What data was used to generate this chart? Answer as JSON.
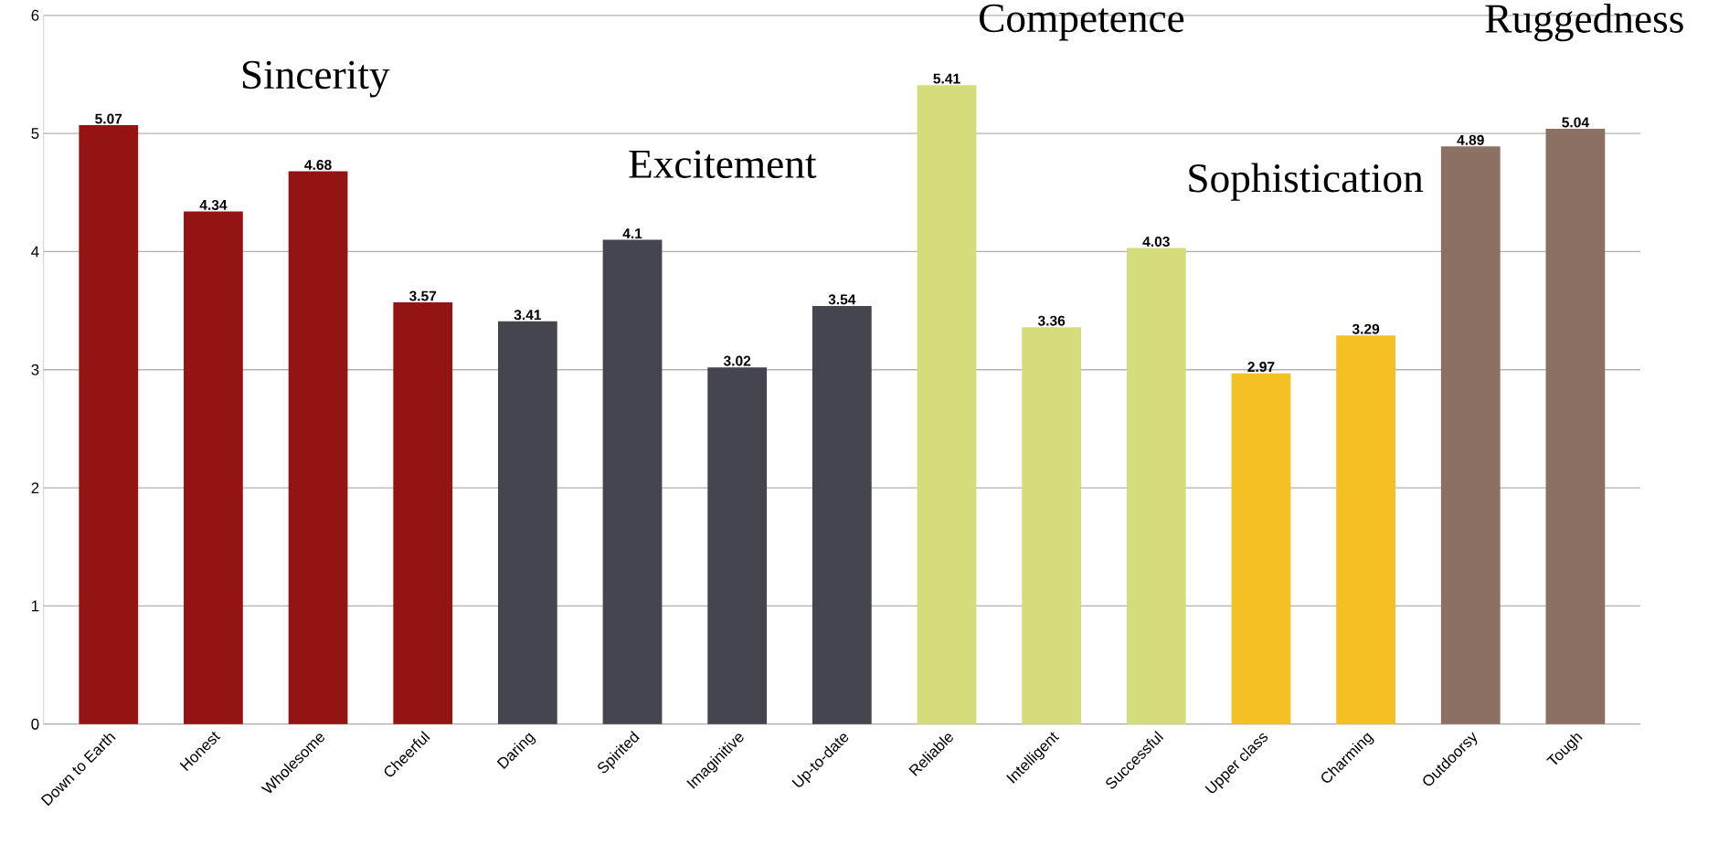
{
  "chart_data": {
    "type": "bar",
    "categories": [
      "Down to Earth",
      "Honest",
      "Wholesome",
      "Cheerful",
      "Daring",
      "Spirited",
      "Imaginitive",
      "Up-to-date",
      "Reliable",
      "Intelligent",
      "Successful",
      "Upper class",
      "Charming",
      "Outdoorsy",
      "Tough"
    ],
    "values": [
      5.07,
      4.34,
      4.68,
      3.57,
      3.41,
      4.1,
      3.02,
      3.54,
      5.41,
      3.36,
      4.03,
      2.97,
      3.29,
      4.89,
      5.04
    ],
    "colors": [
      "#941414",
      "#941414",
      "#941414",
      "#941414",
      "#454550",
      "#454550",
      "#454550",
      "#454550",
      "#d4dc7c",
      "#d4dc7c",
      "#d4dc7c",
      "#f4c024",
      "#f4c024",
      "#8c7064",
      "#8c7064"
    ],
    "data_labels": true,
    "ylim": [
      0,
      6
    ],
    "yticks": [
      0,
      1,
      2,
      3,
      4,
      5,
      6
    ],
    "grid": "y",
    "annotations": [
      "Sincerity",
      "Excitement",
      "Competence",
      "Sophistication",
      "Ruggedness"
    ]
  }
}
